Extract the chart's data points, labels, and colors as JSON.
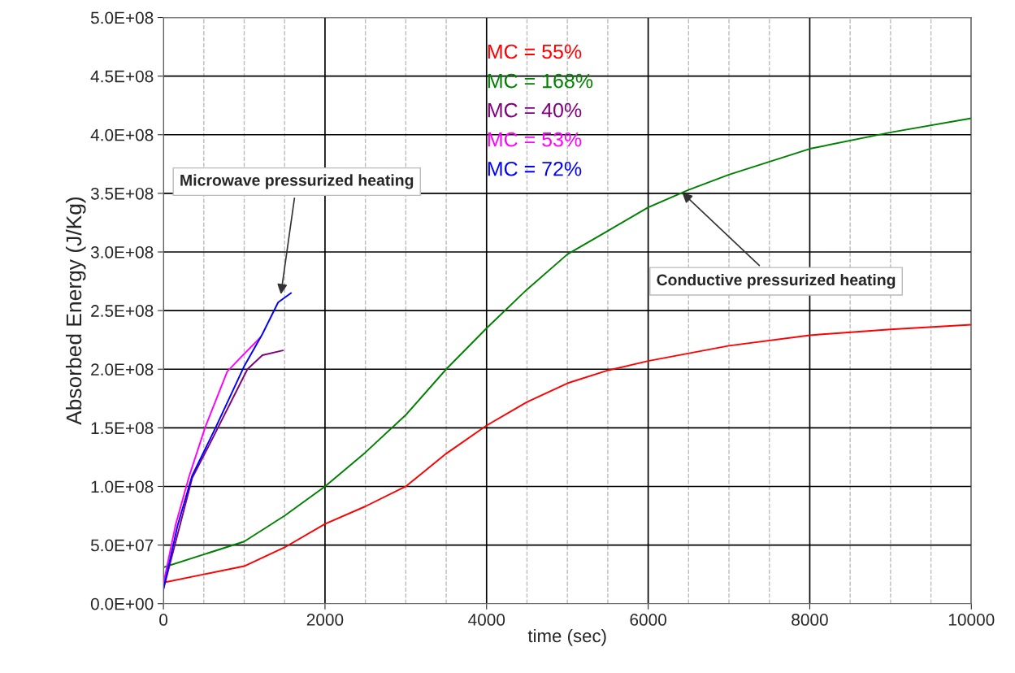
{
  "chart_data": {
    "type": "line",
    "xlabel": "time (sec)",
    "ylabel": "Absorbed Energy (J/Kg)",
    "series": [
      {
        "name": "MC = 55%",
        "color": "#ff0000",
        "x": [
          0,
          500,
          1000,
          1500,
          2000,
          2500,
          3000,
          3500,
          4000,
          4500,
          5000,
          5500,
          6000,
          7000,
          8000,
          9000,
          10000
        ],
        "values": [
          18000000,
          25000000,
          32000000,
          48000000,
          68000000,
          83000000,
          100000000,
          128000000,
          152000000,
          172000000,
          188000000,
          199000000,
          207000000,
          220000000,
          229000000,
          234000000,
          238000000
        ]
      },
      {
        "name": "MC = 168%",
        "color": "#008000",
        "x": [
          0,
          500,
          1000,
          1500,
          2000,
          2500,
          3000,
          3500,
          4000,
          4500,
          5000,
          5500,
          6000,
          6500,
          7000,
          8000,
          9000,
          10000
        ],
        "values": [
          31000000,
          42000000,
          53000000,
          75000000,
          100000000,
          129000000,
          161000000,
          200000000,
          235000000,
          268000000,
          298000000,
          318000000,
          338000000,
          353000000,
          366000000,
          388000000,
          402000000,
          414000000
        ]
      },
      {
        "name": "MC = 40%",
        "color": "#800080",
        "x": [
          0,
          355,
          645,
          1040,
          1225,
          1480
        ],
        "values": [
          12500000,
          107000000,
          146000000,
          200000000,
          212000000,
          216000000
        ]
      },
      {
        "name": "MC = 53%",
        "color": "#ff00ff",
        "x": [
          0,
          150,
          320,
          520,
          790,
          970,
          1200
        ],
        "values": [
          17000000,
          67000000,
          109000000,
          151000000,
          198000000,
          211000000,
          227000000
        ]
      },
      {
        "name": "MC = 72%",
        "color": "#0000ff",
        "x": [
          0,
          177,
          355,
          645,
          1003,
          1225,
          1420,
          1580
        ],
        "values": [
          12500000,
          67000000,
          109000000,
          150000000,
          203000000,
          230000000,
          257000000,
          265000000
        ]
      }
    ],
    "xlim": [
      0,
      10000
    ],
    "xticks": [
      0,
      2000,
      4000,
      6000,
      8000,
      10000
    ],
    "ylim": [
      0,
      500000000
    ],
    "yticks": [
      {
        "value": 0,
        "label": "0.0E+00"
      },
      {
        "value": 50000000,
        "label": "5.0E+07"
      },
      {
        "value": 100000000,
        "label": "1.0E+08"
      },
      {
        "value": 150000000,
        "label": "1.5E+08"
      },
      {
        "value": 200000000,
        "label": "2.0E+08"
      },
      {
        "value": 250000000,
        "label": "2.5E+08"
      },
      {
        "value": 300000000,
        "label": "3.0E+08"
      },
      {
        "value": 350000000,
        "label": "3.5E+08"
      },
      {
        "value": 400000000,
        "label": "4.0E+08"
      },
      {
        "value": 450000000,
        "label": "4.5E+08"
      },
      {
        "value": 500000000,
        "label": "5.0E+08"
      }
    ],
    "grid": true,
    "legend": "top",
    "marker": "none",
    "line_style": "solid",
    "annotations": [
      {
        "text": "Microwave pressurized heating",
        "x": 1450,
        "y": 262000000
      },
      {
        "text": "Conductive pressurized heating",
        "x": 6400,
        "y": 352000000
      }
    ]
  }
}
